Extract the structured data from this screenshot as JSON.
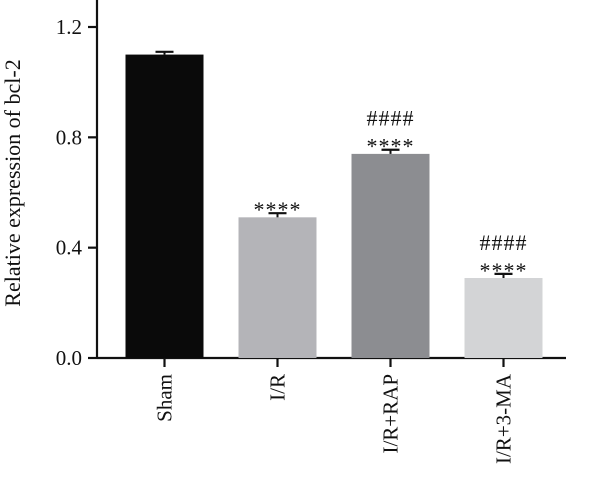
{
  "chart_data": {
    "type": "bar",
    "title": "",
    "xlabel": "",
    "ylabel": "Relative expression of bcl-2",
    "ylim": [
      0,
      1.2
    ],
    "yticks": [
      0.0,
      0.4,
      0.8,
      1.2
    ],
    "ytick_labels": [
      "0.0",
      "0.4",
      "0.8",
      "1.2"
    ],
    "grid": false,
    "legend": "none",
    "categories": [
      "Sham",
      "I/R",
      "I/R+RAP",
      "I/R+3-MA"
    ],
    "values": [
      1.1,
      0.51,
      0.74,
      0.29
    ],
    "errors": [
      0.01,
      0.015,
      0.015,
      0.015
    ],
    "colors": [
      "#0a0a0a",
      "#b4b4b8",
      "#8c8d91",
      "#d3d4d6"
    ],
    "annotations": [
      [],
      [
        "****"
      ],
      [
        "####",
        "****"
      ],
      [
        "####",
        "****"
      ]
    ]
  }
}
